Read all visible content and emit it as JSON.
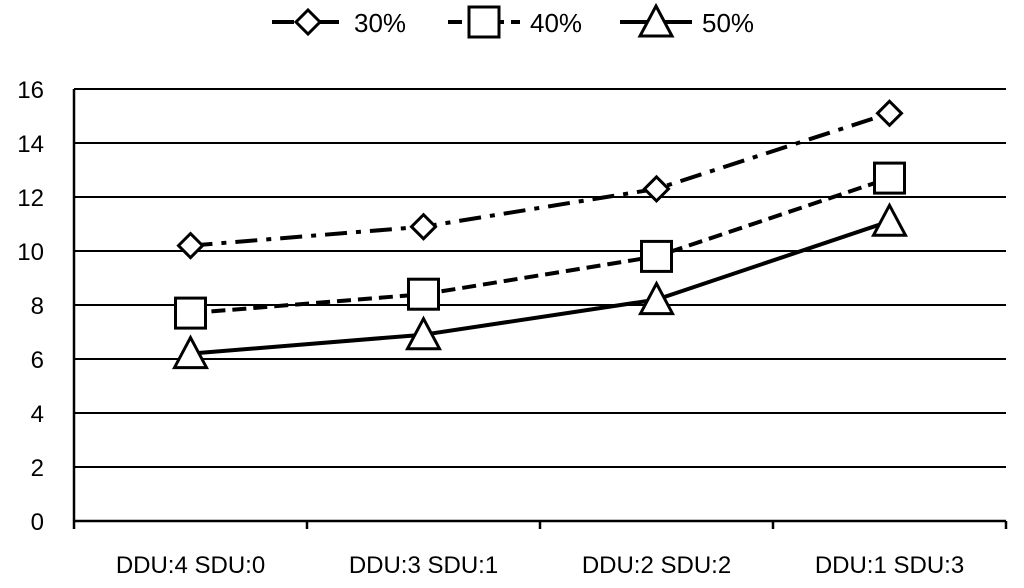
{
  "chart_data": {
    "type": "line",
    "categories": [
      "DDU:4 SDU:0",
      "DDU:3 SDU:1",
      "DDU:2 SDU:2",
      "DDU:1 SDU:3"
    ],
    "series": [
      {
        "name": "30%",
        "values": [
          10.2,
          10.9,
          12.3,
          15.1
        ],
        "dash": "dashdot",
        "marker": "diamond"
      },
      {
        "name": "40%",
        "values": [
          7.7,
          8.4,
          9.8,
          12.7
        ],
        "dash": "dashed",
        "marker": "square"
      },
      {
        "name": "50%",
        "values": [
          6.2,
          6.9,
          8.2,
          11.1
        ],
        "dash": "solid",
        "marker": "triangle"
      }
    ],
    "yticks": [
      "0",
      "2",
      "4",
      "6",
      "8",
      "10",
      "12",
      "14",
      "16"
    ],
    "ylim": [
      0,
      16
    ],
    "grid": true,
    "legend": "top",
    "colors": {
      "line": "#000000",
      "marker_fill": "#ffffff",
      "background": "#ffffff"
    }
  }
}
